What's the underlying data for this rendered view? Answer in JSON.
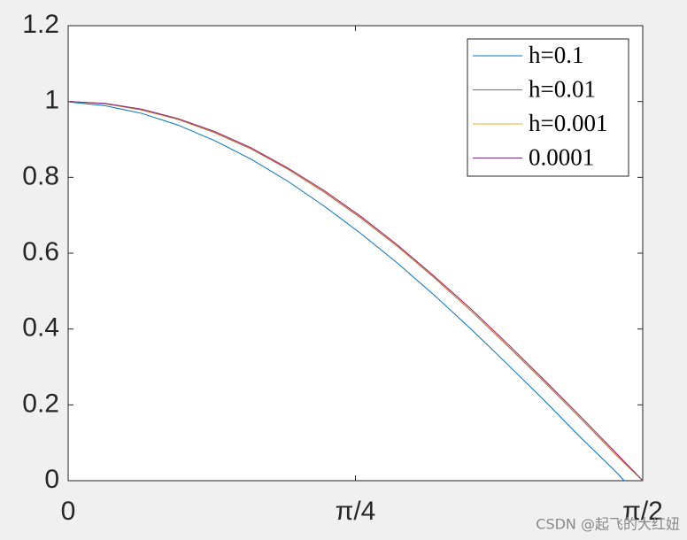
{
  "chart_data": {
    "type": "line",
    "xlim": [
      0,
      1.5708
    ],
    "ylim": [
      0,
      1.2
    ],
    "xticks": [
      {
        "value": 0,
        "label": "0"
      },
      {
        "value": 0.7854,
        "label": "π/4"
      },
      {
        "value": 1.5708,
        "label": "π/2"
      }
    ],
    "yticks": [
      0,
      0.2,
      0.4,
      0.6,
      0.8,
      1,
      1.2
    ],
    "legend": "top-right",
    "series": [
      {
        "name": "h=0.1",
        "color": "#0072bd",
        "x": [
          0,
          0.1,
          0.2,
          0.3,
          0.4,
          0.5,
          0.6,
          0.7,
          0.8,
          0.9,
          1.0,
          1.1,
          1.2,
          1.3,
          1.4,
          1.5,
          1.52
        ],
        "values": [
          0.999,
          0.989,
          0.969,
          0.938,
          0.897,
          0.848,
          0.79,
          0.724,
          0.652,
          0.574,
          0.49,
          0.401,
          0.308,
          0.213,
          0.115,
          0.021,
          0
        ]
      },
      {
        "name": "h=0.01",
        "color": "#d95319",
        "x": [
          0,
          0.1,
          0.2,
          0.3,
          0.4,
          0.5,
          0.6,
          0.7,
          0.8,
          0.9,
          1.0,
          1.1,
          1.2,
          1.3,
          1.4,
          1.5,
          1.5708
        ],
        "values": [
          1,
          0.994,
          0.978,
          0.953,
          0.918,
          0.875,
          0.822,
          0.761,
          0.693,
          0.618,
          0.536,
          0.449,
          0.357,
          0.262,
          0.165,
          0.066,
          0
        ]
      },
      {
        "name": "h=0.001",
        "color": "#edb120",
        "x": [
          0,
          0.1,
          0.2,
          0.3,
          0.4,
          0.5,
          0.6,
          0.7,
          0.8,
          0.9,
          1.0,
          1.1,
          1.2,
          1.3,
          1.4,
          1.5,
          1.5708
        ],
        "values": [
          1,
          0.995,
          0.98,
          0.955,
          0.921,
          0.878,
          0.825,
          0.765,
          0.697,
          0.622,
          0.54,
          0.454,
          0.362,
          0.267,
          0.17,
          0.071,
          0
        ]
      },
      {
        "name": "0.0001",
        "color": "#7e2f8e",
        "x": [
          0,
          0.1,
          0.2,
          0.3,
          0.4,
          0.5,
          0.6,
          0.7,
          0.8,
          0.9,
          1.0,
          1.1,
          1.2,
          1.3,
          1.4,
          1.5,
          1.5708
        ],
        "values": [
          1,
          0.995,
          0.98,
          0.955,
          0.921,
          0.878,
          0.825,
          0.765,
          0.697,
          0.622,
          0.54,
          0.454,
          0.362,
          0.267,
          0.17,
          0.071,
          0
        ]
      }
    ]
  },
  "watermark": "CSDN @起飞的大红妞"
}
